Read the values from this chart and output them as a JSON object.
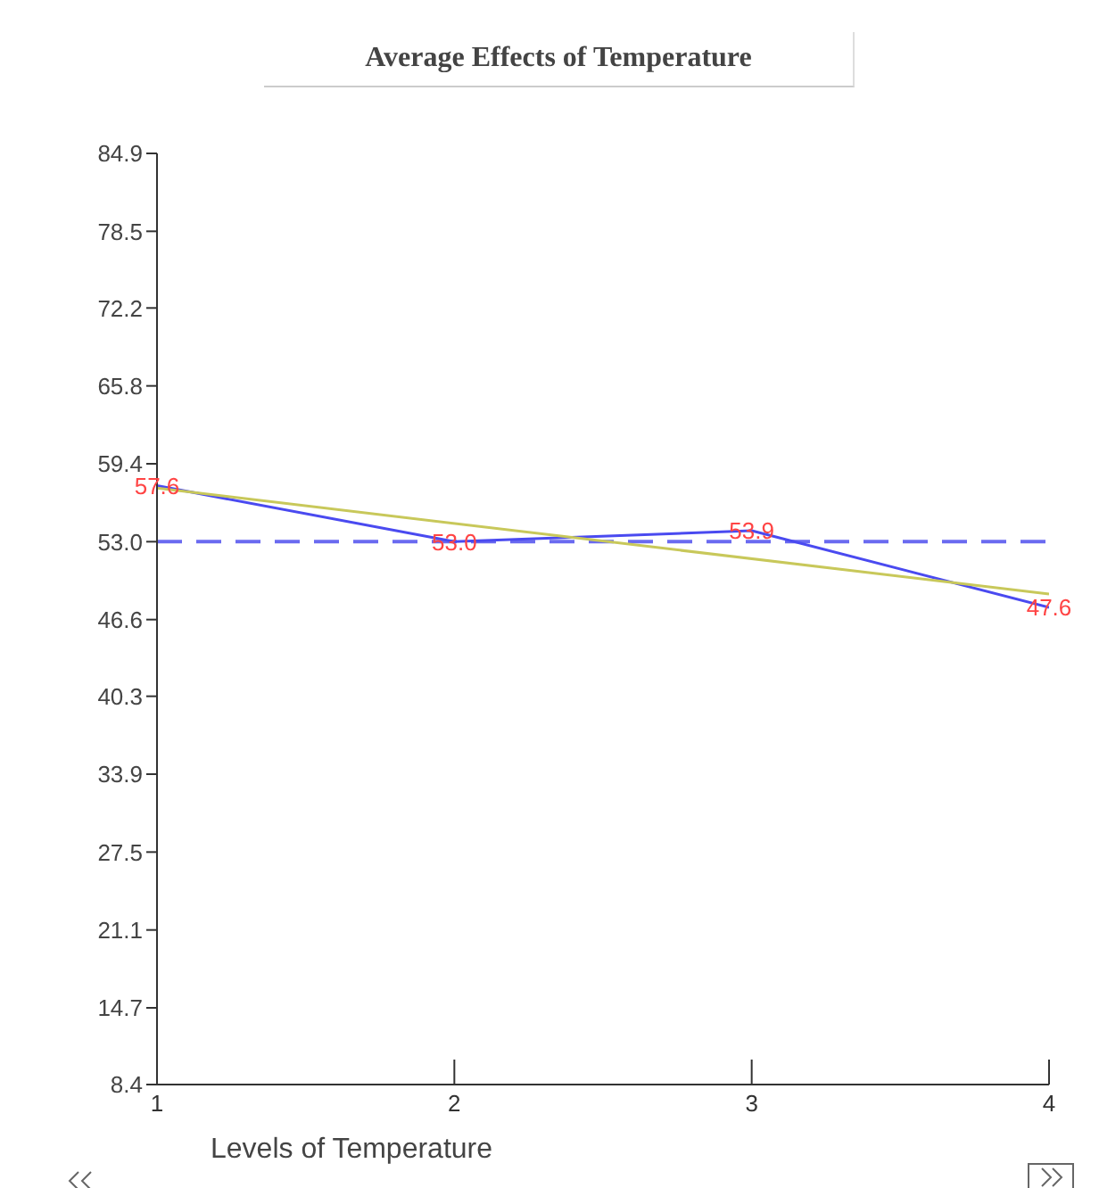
{
  "chart_data": {
    "type": "line",
    "title": "Average Effects of Temperature",
    "xlabel": "Levels of Temperature",
    "x": [
      1,
      2,
      3,
      4
    ],
    "series": [
      {
        "color": "#4a4af0",
        "values": [
          57.6,
          53,
          53.9,
          47.6
        ],
        "value_labels": [
          "57.6",
          "53.0",
          "53.9",
          "47.6"
        ]
      },
      {
        "type": "line",
        "color": "#c8c85a",
        "x": [
          1,
          4
        ],
        "values": [
          57.4,
          48.7
        ]
      }
    ],
    "xlim": [
      1,
      4
    ],
    "xticks": [
      1,
      2,
      3,
      4
    ],
    "ylim": [
      8.4,
      84.9
    ],
    "yticks": [
      8.4,
      14.7,
      21.1,
      27.5,
      33.9,
      40.3,
      46.6,
      {
        "value": 53,
        "label": "53.0"
      },
      59.4,
      65.8,
      72.2,
      78.5,
      84.9
    ],
    "ref_lines": [
      {
        "axis": "y",
        "value": 53,
        "color": "#6a6af0",
        "line_style": "dashed"
      }
    ],
    "marker": "none"
  }
}
